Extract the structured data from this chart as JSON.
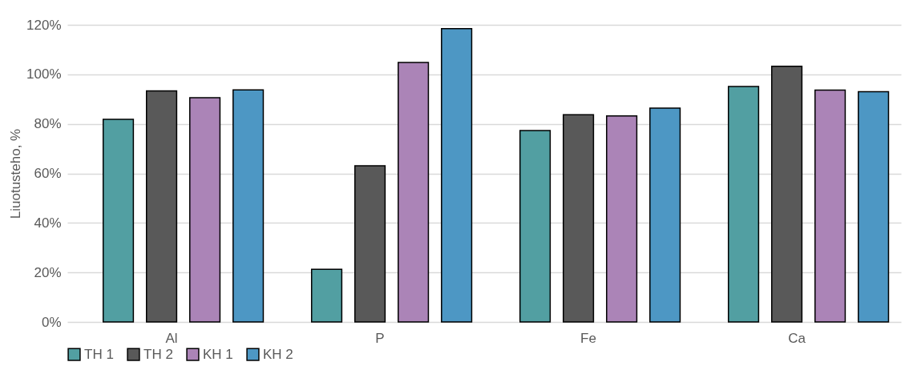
{
  "chart_data": {
    "type": "bar",
    "ylabel": "Liuotusteho, %",
    "categories": [
      "Al",
      "P",
      "Fe",
      "Ca"
    ],
    "series": [
      {
        "name": "TH 1",
        "color": "#529fa2",
        "values": [
          81.8,
          21.3,
          77.3,
          95.1
        ]
      },
      {
        "name": "TH 2",
        "color": "#595959",
        "values": [
          93.3,
          63.1,
          83.7,
          103.3
        ]
      },
      {
        "name": "KH 1",
        "color": "#ab84b7",
        "values": [
          90.6,
          104.8,
          83.2,
          93.6
        ]
      },
      {
        "name": "KH 2",
        "color": "#4d97c4",
        "values": [
          93.7,
          118.5,
          86.4,
          93.0
        ]
      }
    ],
    "ylim": [
      0,
      120
    ],
    "yticks": [
      {
        "value": 0,
        "label": "0%"
      },
      {
        "value": 20,
        "label": "20%"
      },
      {
        "value": 40,
        "label": "40%"
      },
      {
        "value": 60,
        "label": "60%"
      },
      {
        "value": 80,
        "label": "80%"
      },
      {
        "value": 100,
        "label": "100%"
      },
      {
        "value": 120,
        "label": "120%"
      }
    ],
    "grid": "y",
    "legend": "bottom"
  }
}
